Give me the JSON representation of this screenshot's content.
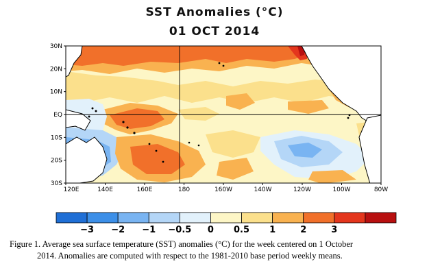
{
  "title": "SST Anomalies (°C)",
  "subtitle": "01 OCT 2014",
  "map": {
    "lat_labels": [
      "30N",
      "20N",
      "10N",
      "EQ",
      "10S",
      "20S",
      "30S"
    ],
    "lon_labels": [
      "120E",
      "140E",
      "160E",
      "180",
      "160W",
      "140W",
      "120W",
      "100W",
      "80W"
    ],
    "gridlines": [
      "EQ",
      "180"
    ]
  },
  "colorbar": {
    "labels": [
      "−3",
      "−2",
      "−1",
      "−0.5",
      "0",
      "0.5",
      "1",
      "2",
      "3"
    ],
    "colors": [
      "#1f6fd6",
      "#3c8fe8",
      "#79b4f2",
      "#b4d6f7",
      "#e2f1fb",
      "#fdf6c6",
      "#fbe08c",
      "#f9b250",
      "#f1702a",
      "#e4361d",
      "#b81010"
    ]
  },
  "caption": {
    "line1": "Figure 1. Average sea surface temperature (SST) anomalies (°C) for the week centered on 1 October",
    "line2": "2014.   Anomalies are computed with respect to the 1981-2010 base period weekly means."
  }
}
